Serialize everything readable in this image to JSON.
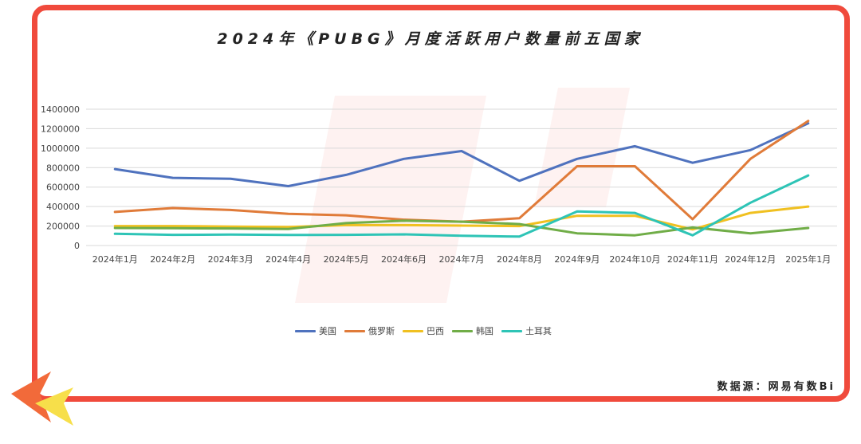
{
  "title": "2024年《PUBG》月度活跃用户数量前五国家",
  "source": "数据源：网易有数Bi",
  "chart_data": {
    "type": "line",
    "title": "2024年《PUBG》月度活跃用户数量前五国家",
    "categories": [
      "2024年1月",
      "2024年2月",
      "2024年3月",
      "2024年4月",
      "2024年5月",
      "2024年6月",
      "2024年7月",
      "2024年8月",
      "2024年9月",
      "2024年10月",
      "2024年11月",
      "2024年12月",
      "2025年1月"
    ],
    "ylim": [
      0,
      1400000
    ],
    "yticks": [
      0,
      200000,
      400000,
      600000,
      800000,
      1000000,
      1200000,
      1400000
    ],
    "grid": true,
    "legend_position": "bottom",
    "series": [
      {
        "name": "美国",
        "color": "#4f72be",
        "values": [
          785000,
          695000,
          685000,
          610000,
          725000,
          890000,
          970000,
          665000,
          890000,
          1020000,
          850000,
          980000,
          1255000
        ]
      },
      {
        "name": "俄罗斯",
        "color": "#e07b39",
        "values": [
          345000,
          385000,
          365000,
          325000,
          310000,
          265000,
          245000,
          280000,
          815000,
          815000,
          270000,
          890000,
          1280000
        ]
      },
      {
        "name": "巴西",
        "color": "#f0c020",
        "values": [
          200000,
          200000,
          195000,
          190000,
          210000,
          210000,
          205000,
          200000,
          305000,
          305000,
          165000,
          335000,
          400000
        ]
      },
      {
        "name": "韩国",
        "color": "#70ad47",
        "values": [
          180000,
          178000,
          175000,
          170000,
          230000,
          255000,
          245000,
          220000,
          125000,
          105000,
          185000,
          125000,
          180000
        ]
      },
      {
        "name": "土耳其",
        "color": "#2ec4b6",
        "values": [
          120000,
          110000,
          112000,
          108000,
          110000,
          115000,
          100000,
          92000,
          350000,
          335000,
          105000,
          440000,
          720000
        ]
      }
    ]
  }
}
